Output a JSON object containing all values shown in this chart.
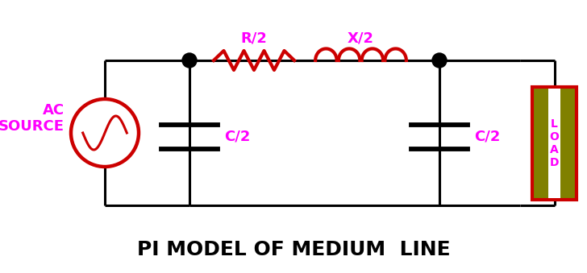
{
  "title": "PI MODEL OF MEDIUM  LINE",
  "title_fontsize": 18,
  "title_color": "#000000",
  "title_fontweight": "bold",
  "bg_color": "#ffffff",
  "line_color": "#000000",
  "line_width": 2.2,
  "component_color_red": "#cc0000",
  "component_color_magenta": "#ff00ff",
  "node_color": "#000000",
  "ac_source_label": "AC\nSOURCE",
  "r_label": "R/2",
  "x_label": "X/2",
  "c1_label": "C/2",
  "c2_label": "C/2",
  "load_label": "L\nO\nA\nD",
  "load_bg": "#808000",
  "load_border": "#cc0000",
  "load_text_color": "#ff00ff"
}
